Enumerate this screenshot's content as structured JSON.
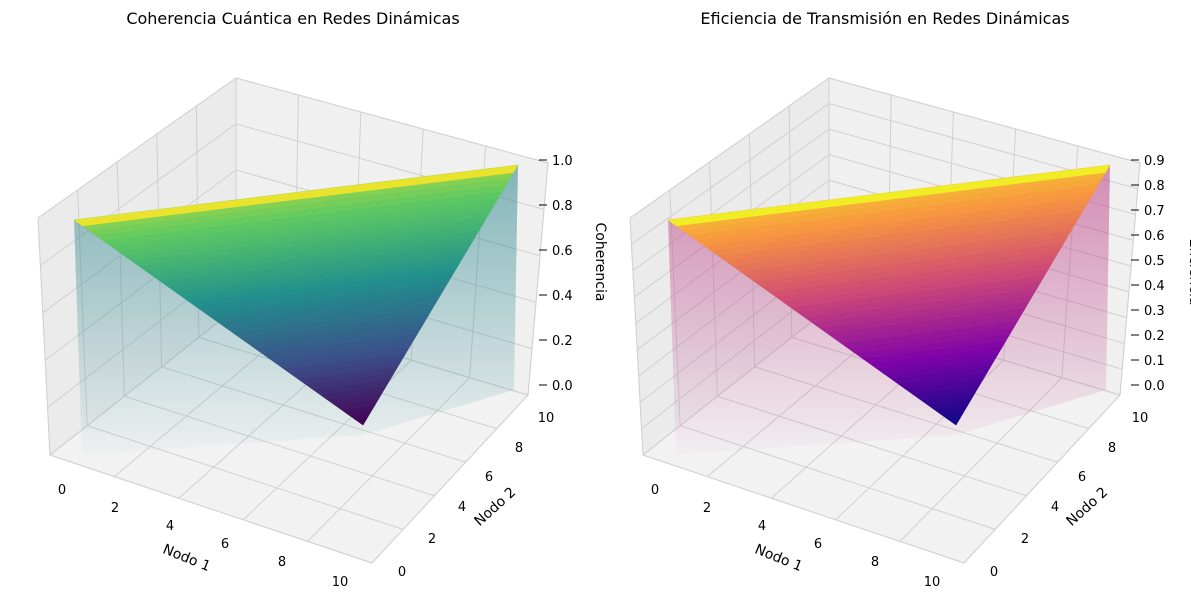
{
  "chart_data": [
    {
      "type": "surface3d",
      "title": "Coherencia Cuántica en Redes Dinámicas",
      "xlabel": "Nodo 1",
      "ylabel": "Nodo 2",
      "zlabel": "Coherencia",
      "xlim": [
        0,
        10
      ],
      "ylim": [
        0,
        10
      ],
      "zlim": [
        0,
        1.0
      ],
      "x_ticks": [
        "0",
        "2",
        "4",
        "6",
        "8",
        "10"
      ],
      "y_ticks": [
        "0",
        "2",
        "4",
        "6",
        "8",
        "10"
      ],
      "z_ticks": [
        "0.0",
        "0.2",
        "0.4",
        "0.6",
        "0.8",
        "1.0"
      ],
      "surface_corners": [
        {
          "x": 0,
          "y": 0,
          "z": 0.68
        },
        {
          "x": 0,
          "y": 10,
          "z": 1.0
        },
        {
          "x": 10,
          "y": 0,
          "z": 0.0
        },
        {
          "x": 10,
          "y": 10,
          "z": 1.0
        }
      ],
      "colormap": "viridis",
      "colormap_stops": [
        "#440154",
        "#3b528b",
        "#21918c",
        "#5ec962",
        "#fde725"
      ],
      "grid": true
    },
    {
      "type": "surface3d",
      "title": "Eficiencia de Transmisión en Redes Dinámicas",
      "xlabel": "Nodo 1",
      "ylabel": "Nodo 2",
      "zlabel": "Eficiencia",
      "xlim": [
        0,
        10
      ],
      "ylim": [
        0,
        10
      ],
      "zlim": [
        0,
        0.9
      ],
      "x_ticks": [
        "0",
        "2",
        "4",
        "6",
        "8",
        "10"
      ],
      "y_ticks": [
        "0",
        "2",
        "4",
        "6",
        "8",
        "10"
      ],
      "z_ticks": [
        "0.0",
        "0.1",
        "0.2",
        "0.3",
        "0.4",
        "0.5",
        "0.6",
        "0.7",
        "0.8",
        "0.9"
      ],
      "surface_corners": [
        {
          "x": 0,
          "y": 0,
          "z": 0.62
        },
        {
          "x": 0,
          "y": 10,
          "z": 0.9
        },
        {
          "x": 10,
          "y": 0,
          "z": 0.0
        },
        {
          "x": 10,
          "y": 10,
          "z": 0.9
        }
      ],
      "colormap": "plasma",
      "colormap_stops": [
        "#0d0887",
        "#7e03a8",
        "#cc4778",
        "#f89540",
        "#f0f921"
      ],
      "grid": true
    }
  ]
}
